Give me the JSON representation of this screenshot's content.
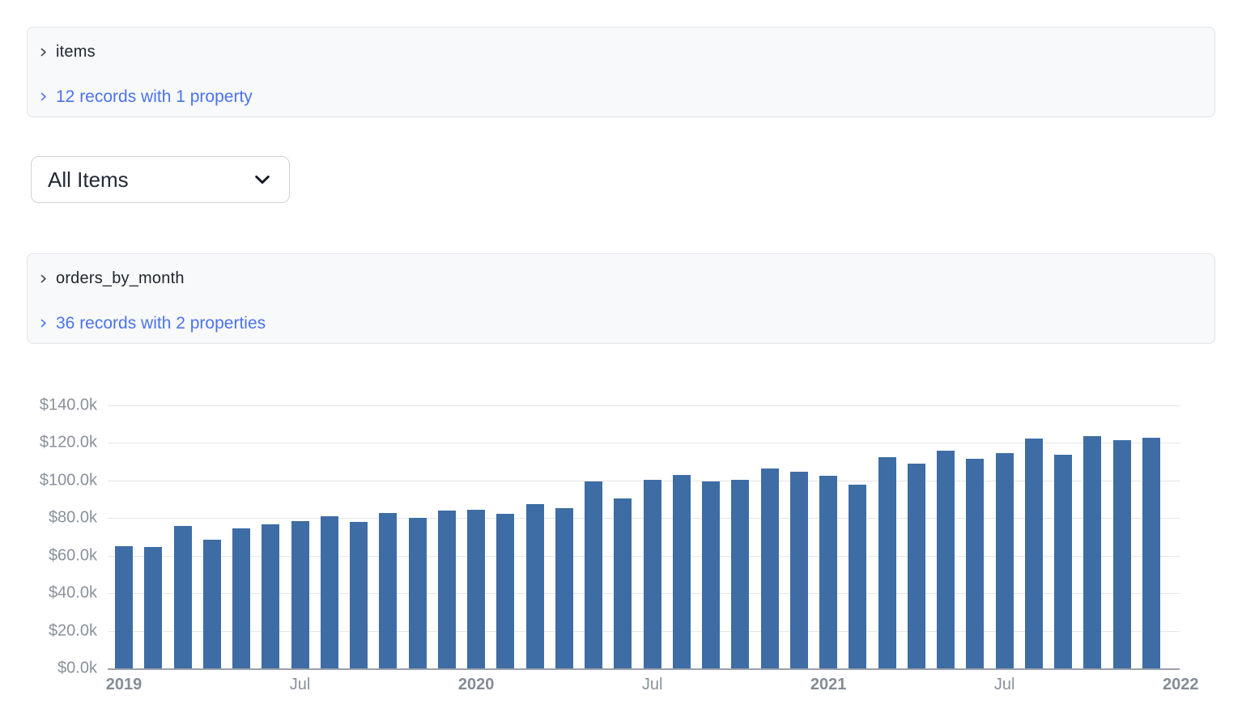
{
  "panels": {
    "items": {
      "title": "items",
      "summary_link": "12 records with 1 property"
    },
    "orders_by_month": {
      "title": "orders_by_month",
      "summary_link": "36 records with 2 properties"
    }
  },
  "filter_select": {
    "value": "All Items"
  },
  "colors": {
    "link_blue": "#4a73ed",
    "bar_blue": "#3d6da4",
    "panel_background": "#f8f9fa",
    "panel_border": "#e2e4e8",
    "axis_label_gray": "#8a909b",
    "gridline_gray": "#e4e5e9",
    "axis_line_gray": "#9aa0aa"
  },
  "chart_data": {
    "type": "bar",
    "title": "",
    "xlabel": "",
    "ylabel": "",
    "ylim": [
      0,
      140000
    ],
    "grid": true,
    "legend": false,
    "x": [
      "2019-01",
      "2019-02",
      "2019-03",
      "2019-04",
      "2019-05",
      "2019-06",
      "2019-07",
      "2019-08",
      "2019-09",
      "2019-10",
      "2019-11",
      "2019-12",
      "2020-01",
      "2020-02",
      "2020-03",
      "2020-04",
      "2020-05",
      "2020-06",
      "2020-07",
      "2020-08",
      "2020-09",
      "2020-10",
      "2020-11",
      "2020-12",
      "2021-01",
      "2021-02",
      "2021-03",
      "2021-04",
      "2021-05",
      "2021-06",
      "2021-07",
      "2021-08",
      "2021-09",
      "2021-10",
      "2021-11",
      "2021-12"
    ],
    "values": [
      65200,
      64600,
      75700,
      68400,
      74700,
      76700,
      78600,
      81100,
      78100,
      82600,
      80200,
      84200,
      84600,
      82100,
      87500,
      85400,
      99700,
      90600,
      100500,
      103100,
      99500,
      100500,
      106200,
      104500,
      102600,
      98000,
      112400,
      108900,
      115700,
      111400,
      114700,
      122500,
      113800,
      123500,
      121400,
      122700
    ],
    "y_ticks": [
      {
        "value": 0,
        "label": "$0.0k"
      },
      {
        "value": 20000,
        "label": "$20.0k"
      },
      {
        "value": 40000,
        "label": "$40.0k"
      },
      {
        "value": 60000,
        "label": "$60.0k"
      },
      {
        "value": 80000,
        "label": "$80.0k"
      },
      {
        "value": 100000,
        "label": "$100.0k"
      },
      {
        "value": 120000,
        "label": "$120.0k"
      },
      {
        "value": 140000,
        "label": "$140.0k"
      }
    ],
    "x_ticks": [
      {
        "month_index": 0,
        "label": "2019",
        "bold": true
      },
      {
        "month_index": 6,
        "label": "Jul",
        "bold": false
      },
      {
        "month_index": 12,
        "label": "2020",
        "bold": true
      },
      {
        "month_index": 18,
        "label": "Jul",
        "bold": false
      },
      {
        "month_index": 24,
        "label": "2021",
        "bold": true
      },
      {
        "month_index": 30,
        "label": "Jul",
        "bold": false
      },
      {
        "month_index": 36,
        "label": "2022",
        "bold": true
      }
    ]
  }
}
